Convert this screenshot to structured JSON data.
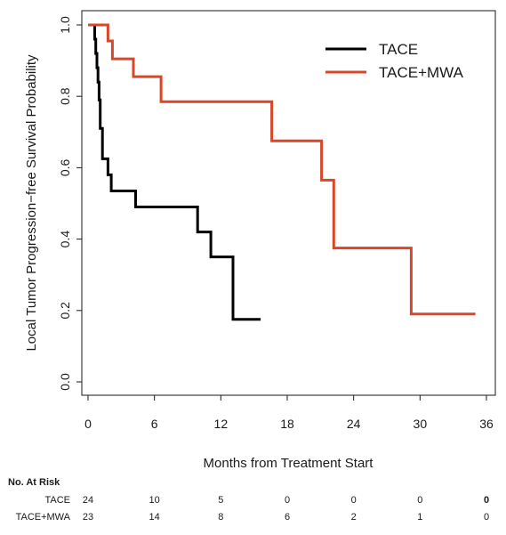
{
  "chart_data": {
    "type": "line",
    "step": true,
    "xlabel": "Months from Treatment Start",
    "ylabel": "Local Tumor Progression−free Survival Probability",
    "xlim": [
      0,
      36
    ],
    "ylim": [
      0,
      1
    ],
    "x_ticks": [
      0,
      6,
      12,
      18,
      24,
      30,
      36
    ],
    "y_ticks": [
      0.0,
      0.2,
      0.4,
      0.6,
      0.8,
      1.0
    ],
    "x_tick_labels": [
      "0",
      "6",
      "12",
      "18",
      "24",
      "30",
      "36"
    ],
    "y_tick_labels": [
      "0.0",
      "0.2",
      "0.4",
      "0.6",
      "0.8",
      "1.0"
    ],
    "grid": false,
    "legend_position": "top-right",
    "series": [
      {
        "name": "TACE",
        "color": "#000000",
        "x": [
          0,
          0.6,
          0.7,
          0.8,
          0.9,
          1.0,
          1.1,
          1.3,
          1.8,
          2.1,
          4.3,
          9.9,
          11.1,
          13.1,
          15.6
        ],
        "y": [
          1.0,
          0.96,
          0.92,
          0.88,
          0.84,
          0.79,
          0.71,
          0.625,
          0.58,
          0.535,
          0.49,
          0.42,
          0.35,
          0.175,
          0.175
        ]
      },
      {
        "name": "TACE+MWA",
        "color": "#d9472b",
        "x": [
          0,
          1.8,
          2.2,
          4.1,
          6.6,
          16.6,
          21.1,
          22.2,
          29.2,
          35.0
        ],
        "y": [
          1.0,
          0.955,
          0.905,
          0.855,
          0.785,
          0.675,
          0.565,
          0.375,
          0.19,
          0.19
        ]
      }
    ]
  },
  "risk_table": {
    "title": "No. At Risk",
    "rows": [
      {
        "label": "TACE",
        "values": [
          "24",
          "10",
          "5",
          "0",
          "0",
          "0",
          "0"
        ]
      },
      {
        "label": "TACE+MWA",
        "values": [
          "23",
          "14",
          "8",
          "6",
          "2",
          "1",
          "0"
        ]
      }
    ]
  }
}
